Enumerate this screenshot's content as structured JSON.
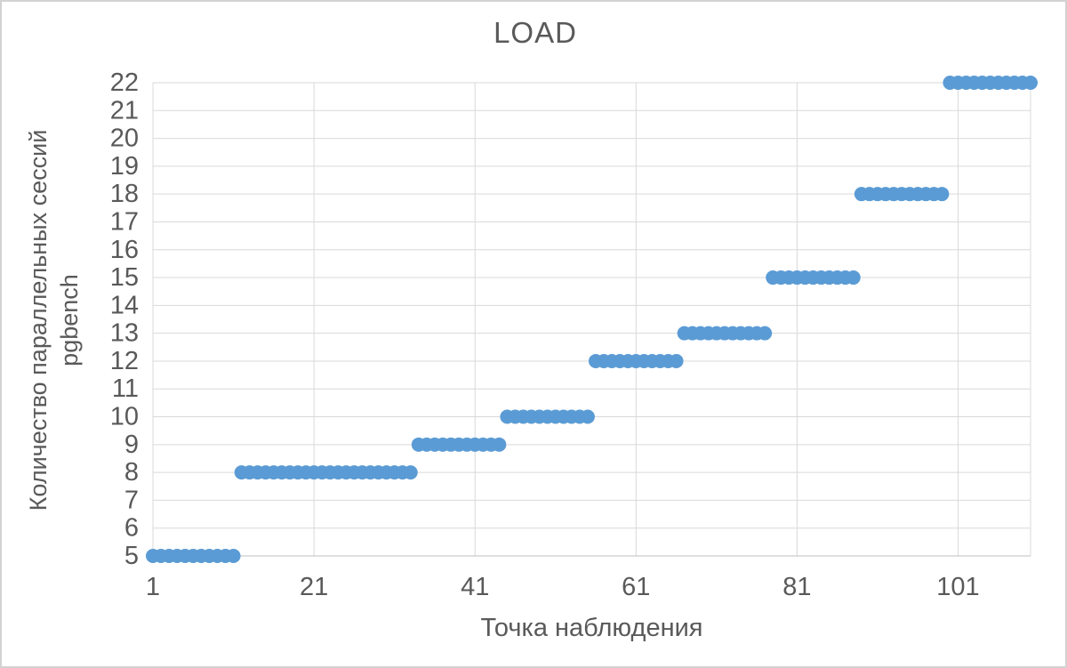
{
  "window": {
    "background": "#ffffff",
    "border_color": "#d2d2d2"
  },
  "chart_data": {
    "type": "scatter",
    "title": "LOAD",
    "xlabel": "Точка наблюдения",
    "ylabel_lines": [
      "Количество параллельных сессий",
      "pgbench"
    ],
    "x_ticks": [
      1,
      21,
      41,
      61,
      81,
      101
    ],
    "y_ticks": [
      5,
      6,
      7,
      8,
      9,
      10,
      11,
      12,
      13,
      14,
      15,
      16,
      17,
      18,
      19,
      20,
      21,
      22
    ],
    "xlim": [
      1,
      110
    ],
    "ylim": [
      5,
      22
    ],
    "grid": true,
    "legend": "none",
    "marker_color": "#5B9BD5",
    "grid_color": "#D9D9D9",
    "axis_line_color": "#BFBFBF",
    "text_color": "#595959",
    "point_step": 1,
    "segments": [
      {
        "y": 5,
        "x_from": 1,
        "x_to": 11
      },
      {
        "y": 8,
        "x_from": 12,
        "x_to": 33
      },
      {
        "y": 9,
        "x_from": 34,
        "x_to": 44
      },
      {
        "y": 10,
        "x_from": 45,
        "x_to": 55
      },
      {
        "y": 12,
        "x_from": 56,
        "x_to": 66
      },
      {
        "y": 13,
        "x_from": 67,
        "x_to": 77
      },
      {
        "y": 15,
        "x_from": 78,
        "x_to": 88
      },
      {
        "y": 18,
        "x_from": 89,
        "x_to": 99
      },
      {
        "y": 22,
        "x_from": 100,
        "x_to": 110
      }
    ]
  }
}
